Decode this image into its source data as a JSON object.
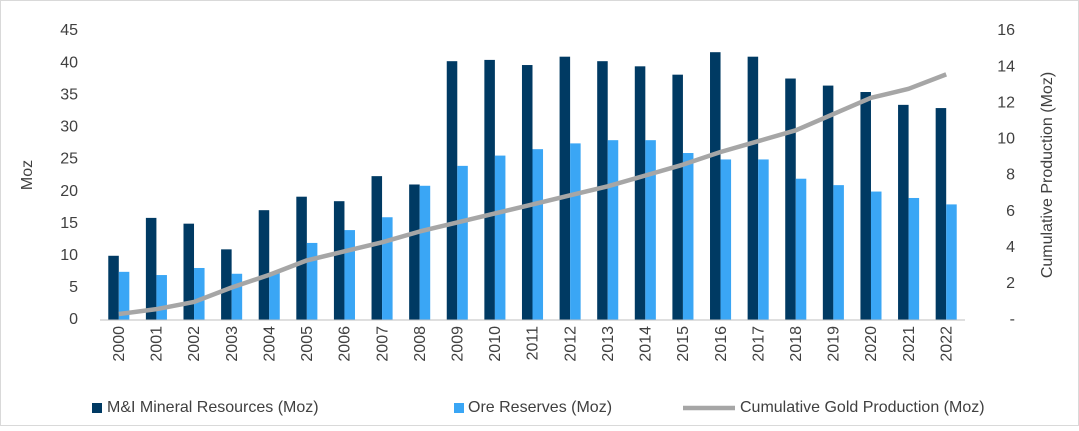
{
  "chart_data": {
    "type": "bar",
    "categories": [
      "2000",
      "2001",
      "2002",
      "2003",
      "2004",
      "2005",
      "2006",
      "2007",
      "2008",
      "2009",
      "2010",
      "2011",
      "2012",
      "2013",
      "2014",
      "2015",
      "2016",
      "2017",
      "2018",
      "2019",
      "2020",
      "2021",
      "2022"
    ],
    "series": [
      {
        "name": "M&I Mineral Resources (Moz)",
        "type": "bar",
        "color": "#003a63",
        "values": [
          10,
          15.9,
          15,
          11,
          17.1,
          19.2,
          18.5,
          22.4,
          21.1,
          40.3,
          40.5,
          39.7,
          41,
          40.3,
          39.5,
          38.2,
          41.7,
          41,
          37.6,
          36.5,
          35.5,
          33.5,
          33
        ]
      },
      {
        "name": "Ore Reserves (Moz)",
        "type": "bar",
        "color": "#3aa6f5",
        "values": [
          7.5,
          7,
          8.1,
          7.2,
          7.4,
          12,
          14,
          16,
          20.9,
          24,
          25.6,
          26.6,
          27.5,
          28,
          28,
          26,
          25,
          25,
          22,
          21,
          20,
          19,
          18
        ]
      },
      {
        "name": "Cumulative Gold Production (Moz)",
        "type": "line",
        "axis": "y2",
        "color": "#a6a6a6",
        "values": [
          0.33,
          0.6,
          1.0,
          1.8,
          2.5,
          3.3,
          3.8,
          4.3,
          4.9,
          5.4,
          5.9,
          6.4,
          6.9,
          7.4,
          8.0,
          8.6,
          9.3,
          9.9,
          10.5,
          11.4,
          12.3,
          12.8,
          13.6
        ]
      }
    ],
    "ylabel": "Moz",
    "y2label": "Cumulative Production (Moz)",
    "ylim": [
      0,
      45
    ],
    "yticks": [
      0,
      5,
      10,
      15,
      20,
      25,
      30,
      35,
      40,
      45
    ],
    "y2lim": [
      0,
      16
    ],
    "y2ticks": [
      {
        "value": 0,
        "label": "-"
      },
      2,
      4,
      6,
      8,
      10,
      12,
      14,
      16
    ],
    "grid": false,
    "legend": "bottom"
  }
}
